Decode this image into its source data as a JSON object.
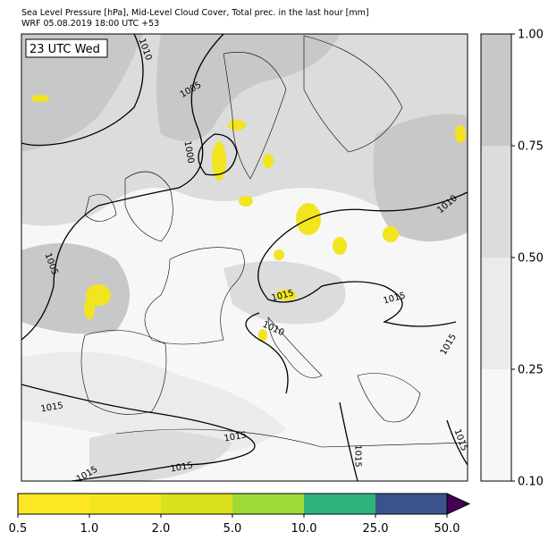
{
  "header": {
    "title_line1": "Sea Level Pressure [hPa], Mid-Level Cloud Cover, Total prec. in the last hour [mm]",
    "title_line2": "WRF 05.08.2019 18:00 UTC +53"
  },
  "map": {
    "time_label": "23 UTC Wed",
    "contour_labels": [
      "1010",
      "1005",
      "1000",
      "1010",
      "1005",
      "1015",
      "1015",
      "1010",
      "1015",
      "1015",
      "1015",
      "1015",
      "1015",
      "1015",
      "1015"
    ]
  },
  "cloud_colorbar": {
    "ticks": [
      "0.10",
      "0.25",
      "0.50",
      "0.75",
      "1.00"
    ],
    "colors": [
      "#f7f7f7",
      "#ebebeb",
      "#dcdcdc",
      "#c8c8c8"
    ]
  },
  "precip_colorbar": {
    "ticks": [
      "0.5",
      "1.0",
      "2.0",
      "5.0",
      "10.0",
      "25.0",
      "50.0"
    ],
    "colors": [
      "#fde725",
      "#f2e51f",
      "#d9e01d",
      "#a0da39",
      "#2eb37c",
      "#3b528b"
    ],
    "extend_color": "#440154"
  }
}
